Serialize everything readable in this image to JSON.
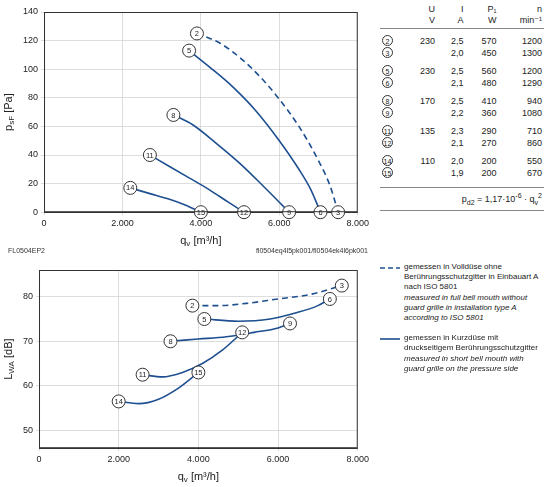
{
  "chart_data": [
    {
      "type": "line",
      "xlabel": {
        "base": "q",
        "sub": "v",
        "rest": " [m³/h]"
      },
      "ylabel": {
        "base": "p",
        "sub": "sF",
        "rest": " [Pa]"
      },
      "xlim": [
        0,
        8000
      ],
      "xticks": [
        0,
        {
          "value": 2000,
          "label": "2.000"
        },
        {
          "value": 4000,
          "label": "4.000"
        },
        {
          "value": 6000,
          "label": "6.000"
        },
        {
          "value": 8000,
          "label": "8.000"
        }
      ],
      "ylim": [
        0,
        140
      ],
      "yticks": [
        0,
        20,
        40,
        60,
        80,
        100,
        120,
        140
      ],
      "grid": true,
      "series": [
        {
          "color": "#1d4f91",
          "line_style": "dashed",
          "x": [
            3900,
            4500,
            5000,
            5500,
            6000,
            6500,
            7000,
            7300,
            7500
          ],
          "values": [
            125,
            118,
            108,
            95,
            79,
            60,
            36,
            18,
            0
          ],
          "point_labels": [
            2,
            null,
            null,
            null,
            null,
            null,
            null,
            null,
            3
          ]
        },
        {
          "color": "#1d4f91",
          "line_style": "solid",
          "x": [
            3700,
            4200,
            4800,
            5400,
            6000,
            6500,
            6800,
            7050
          ],
          "values": [
            113,
            102,
            88,
            71,
            50,
            30,
            16,
            0
          ],
          "point_labels": [
            5,
            null,
            null,
            null,
            null,
            null,
            null,
            6
          ]
        },
        {
          "color": "#1d4f91",
          "line_style": "solid",
          "x": [
            3300,
            3800,
            4400,
            5000,
            5600,
            6000,
            6250
          ],
          "values": [
            68,
            61,
            48,
            34,
            18,
            7,
            0
          ],
          "point_labels": [
            8,
            null,
            null,
            null,
            null,
            null,
            9
          ]
        },
        {
          "color": "#1d4f91",
          "line_style": "solid",
          "x": [
            2700,
            3200,
            3700,
            4200,
            4700,
            5100
          ],
          "values": [
            40,
            32,
            24,
            16,
            7,
            0
          ],
          "point_labels": [
            11,
            null,
            null,
            null,
            null,
            12
          ]
        },
        {
          "color": "#1d4f91",
          "line_style": "solid",
          "x": [
            2200,
            2700,
            3200,
            3600,
            4000
          ],
          "values": [
            17,
            13,
            9,
            5,
            0
          ],
          "point_labels": [
            14,
            null,
            null,
            null,
            15
          ]
        }
      ]
    },
    {
      "type": "line",
      "xlabel": {
        "base": "q",
        "sub": "v",
        "rest": " [m³/h]"
      },
      "ylabel": {
        "base": "L",
        "sub": "WA",
        "rest": " [dB]"
      },
      "xlim": [
        0,
        8000
      ],
      "xticks": [
        0,
        {
          "value": 2000,
          "label": "2.000"
        },
        {
          "value": 4000,
          "label": "4.000"
        },
        {
          "value": 6000,
          "label": "6.000"
        },
        {
          "value": 8000,
          "label": "8.000"
        }
      ],
      "ylim": [
        46,
        86
      ],
      "yticks": [
        50,
        60,
        70,
        80
      ],
      "grid": true,
      "series": [
        {
          "color": "#1d4f91",
          "line_style": "dashed",
          "x": [
            3850,
            4500,
            5200,
            6000,
            6800,
            7600
          ],
          "values": [
            78,
            78,
            78.5,
            79.5,
            80.5,
            82.5
          ],
          "point_labels": [
            2,
            null,
            null,
            null,
            null,
            3
          ]
        },
        {
          "color": "#1d4f91",
          "line_style": "solid",
          "x": [
            4150,
            5000,
            5800,
            6500,
            7000,
            7300
          ],
          "values": [
            75,
            74.5,
            75,
            76.5,
            78,
            79.5
          ],
          "point_labels": [
            5,
            null,
            null,
            null,
            null,
            6
          ]
        },
        {
          "color": "#1d4f91",
          "line_style": "solid",
          "x": [
            3300,
            4000,
            4700,
            5400,
            6000,
            6300
          ],
          "values": [
            70,
            70.5,
            71,
            72,
            73,
            74
          ],
          "point_labels": [
            8,
            null,
            null,
            null,
            null,
            9
          ]
        },
        {
          "color": "#1d4f91",
          "line_style": "solid",
          "x": [
            2600,
            3100,
            3600,
            4100,
            4600,
            5100
          ],
          "values": [
            62.5,
            62,
            63,
            65,
            68,
            72
          ],
          "point_labels": [
            11,
            null,
            null,
            null,
            null,
            12
          ]
        },
        {
          "color": "#1d4f91",
          "line_style": "solid",
          "x": [
            2000,
            2500,
            3000,
            3500,
            4000
          ],
          "values": [
            56.5,
            56,
            57,
            59.5,
            63
          ],
          "point_labels": [
            14,
            null,
            null,
            null,
            15
          ]
        }
      ]
    }
  ],
  "footer": {
    "left": "FL0504EP2",
    "right": "fl0504eq4l5pk001/fl0504ek4l6pk001"
  },
  "table": {
    "header": [
      "U",
      "I",
      "P₁",
      "n"
    ],
    "units": [
      "V",
      "A",
      "W",
      "min⁻¹"
    ],
    "rows": [
      [
        2,
        "230",
        "2,5",
        "570",
        "1200"
      ],
      [
        3,
        null,
        "2,0",
        "450",
        "1300"
      ],
      [
        5,
        "230",
        "2,5",
        "560",
        "1200"
      ],
      [
        6,
        null,
        "2,1",
        "480",
        "1290"
      ],
      [
        8,
        "170",
        "2,5",
        "410",
        "940"
      ],
      [
        9,
        null,
        "2,2",
        "360",
        "1080"
      ],
      [
        11,
        "135",
        "2,3",
        "290",
        "710"
      ],
      [
        12,
        null,
        "2,1",
        "270",
        "860"
      ],
      [
        14,
        "110",
        "2,0",
        "200",
        "550"
      ],
      [
        15,
        null,
        "1,9",
        "200",
        "670"
      ]
    ]
  },
  "formula": [
    {
      "text": "p"
    },
    {
      "sub": "d2"
    },
    {
      "text": " = 1,17·10"
    },
    {
      "sup": "-6"
    },
    {
      "text": " · q"
    },
    {
      "sub": "v"
    },
    {
      "sup": "2"
    }
  ],
  "notes": [
    {
      "line_style": "dashed",
      "color": "#1d4f91",
      "de": "gemessen in Volldüse ohne Berührungsschutzgitter in Einbauart A nach ISO 5801",
      "en": "measured in full bell mouth without guard grille in installation type A according to ISO 5801"
    },
    {
      "line_style": "solid",
      "color": "#1d4f91",
      "de": "gemessen in Kurzdüse mit druckseitigem Berührungsschutzgitter",
      "en": "measured in short bell mouth with guard grille on the pressure side"
    }
  ]
}
